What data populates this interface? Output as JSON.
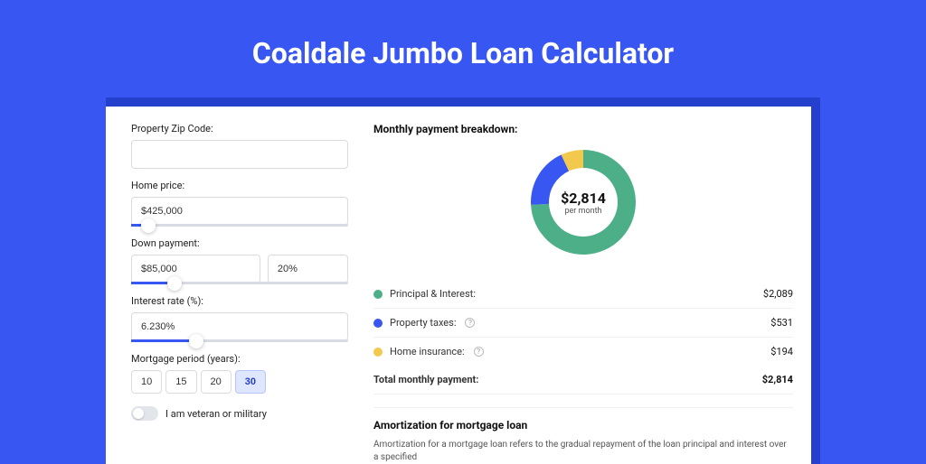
{
  "colors": {
    "page_bg": "#3756f2",
    "card_wrap_bg": "#2440cc",
    "card_bg": "#ffffff",
    "input_border": "#d8dce2",
    "slider_fill": "#3756f2",
    "period_active_bg": "#dfe6ff"
  },
  "title": "Coaldale Jumbo Loan Calculator",
  "form": {
    "zip": {
      "label": "Property Zip Code:",
      "value": ""
    },
    "price": {
      "label": "Home price:",
      "value": "$425,000",
      "slider_pct": 8
    },
    "down": {
      "label": "Down payment:",
      "amount": "$85,000",
      "percent": "20%",
      "slider_pct": 20
    },
    "rate": {
      "label": "Interest rate (%):",
      "value": "6.230%",
      "slider_pct": 30
    },
    "period": {
      "label": "Mortgage period (years):",
      "options": [
        "10",
        "15",
        "20",
        "30"
      ],
      "active": "30"
    },
    "veteran": {
      "label": "I am veteran or military",
      "checked": false
    }
  },
  "breakdown": {
    "title": "Monthly payment breakdown:",
    "donut": {
      "center_amount": "$2,814",
      "center_sub": "per month",
      "slices": [
        {
          "color": "#4caf88",
          "pct": 74.2
        },
        {
          "color": "#3756f2",
          "pct": 18.9
        },
        {
          "color": "#f2c94c",
          "pct": 6.9
        }
      ],
      "thickness": 20
    },
    "items": [
      {
        "dot": "#4caf88",
        "label": "Principal & Interest:",
        "value": "$2,089",
        "info": false
      },
      {
        "dot": "#3756f2",
        "label": "Property taxes:",
        "value": "$531",
        "info": true
      },
      {
        "dot": "#f2c94c",
        "label": "Home insurance:",
        "value": "$194",
        "info": true
      }
    ],
    "total": {
      "label": "Total monthly payment:",
      "value": "$2,814"
    }
  },
  "amortization": {
    "title": "Amortization for mortgage loan",
    "text": "Amortization for a mortgage loan refers to the gradual repayment of the loan principal and interest over a specified"
  }
}
